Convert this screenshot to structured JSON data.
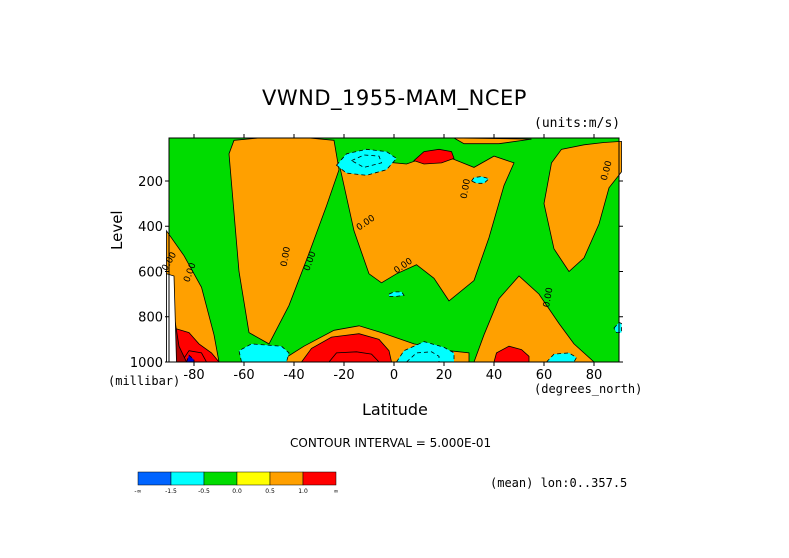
{
  "chart_data": {
    "type": "heatmap",
    "title": "VWND_1955-MAM_NCEP",
    "units_label": "(units:m/s)",
    "xlabel": "Latitude",
    "x_units_label": "(degrees_north)",
    "ylabel": "Level",
    "y_units_label": "(millibar)",
    "xlim": [
      -90,
      90
    ],
    "ylim": [
      1000,
      10
    ],
    "x_ticks": [
      "-80",
      "-60",
      "-40",
      "-20",
      "0",
      "20",
      "40",
      "60",
      "80"
    ],
    "y_ticks": [
      "200",
      "400",
      "600",
      "800",
      "1000"
    ],
    "contour_interval_text": "CONTOUR INTERVAL = 5.000E-01",
    "mean_text": "(mean) lon:0..357.5",
    "colorbar": {
      "colors": [
        "#0064ff",
        "#00ffff",
        "#00dc00",
        "#ffff00",
        "#ffa000",
        "#ff0000"
      ],
      "labels": [
        "-∞",
        "-1.5",
        "-0.5",
        "0.0",
        "0.5",
        "1.0",
        "∞"
      ]
    },
    "contour_labels": [
      "0.00",
      "0.00",
      "0.00",
      "0.00",
      "0.00",
      "0.00",
      "0.00",
      "0.00",
      "0.00"
    ],
    "regions": [
      {
        "level": 0.5,
        "points": [
          [
            -66,
            80
          ],
          [
            -62,
            600
          ],
          [
            -58,
            870
          ],
          [
            -50,
            920
          ],
          [
            -42,
            750
          ],
          [
            -34,
            520
          ],
          [
            -27,
            310
          ],
          [
            -22,
            150
          ],
          [
            -24,
            20
          ],
          [
            -34,
            10
          ],
          [
            -54,
            10
          ],
          [
            -64,
            20
          ]
        ]
      },
      {
        "level": 0.5,
        "points": [
          [
            -22,
            120
          ],
          [
            -16,
            420
          ],
          [
            -10,
            610
          ],
          [
            -5,
            650
          ],
          [
            1,
            610
          ],
          [
            9,
            570
          ],
          [
            16,
            630
          ],
          [
            22,
            730
          ],
          [
            32,
            640
          ],
          [
            38,
            450
          ],
          [
            44,
            220
          ],
          [
            48,
            120
          ],
          [
            40,
            90
          ],
          [
            32,
            140
          ],
          [
            23,
            100
          ],
          [
            14,
            90
          ],
          [
            5,
            125
          ],
          [
            -4,
            115
          ],
          [
            -14,
            100
          ]
        ]
      },
      {
        "level": 0.5,
        "points": [
          [
            -91,
            420
          ],
          [
            -84,
            530
          ],
          [
            -77,
            670
          ],
          [
            -72,
            880
          ],
          [
            -70,
            1000
          ],
          [
            -91,
            1000
          ]
        ]
      },
      {
        "level": 0.5,
        "points": [
          [
            -46,
            1000
          ],
          [
            -36,
            930
          ],
          [
            -24,
            860
          ],
          [
            -14,
            840
          ],
          [
            -5,
            870
          ],
          [
            8,
            920
          ],
          [
            22,
            950
          ],
          [
            30,
            960
          ],
          [
            30,
            1000
          ]
        ]
      },
      {
        "level": 0.5,
        "points": [
          [
            32,
            1000
          ],
          [
            36,
            880
          ],
          [
            42,
            720
          ],
          [
            50,
            620
          ],
          [
            58,
            700
          ],
          [
            66,
            830
          ],
          [
            72,
            920
          ],
          [
            80,
            1000
          ]
        ]
      },
      {
        "level": 0.5,
        "points": [
          [
            60,
            300
          ],
          [
            63,
            120
          ],
          [
            67,
            60
          ],
          [
            76,
            40
          ],
          [
            84,
            30
          ],
          [
            91,
            25
          ],
          [
            91,
            160
          ],
          [
            86,
            230
          ],
          [
            82,
            390
          ],
          [
            76,
            540
          ],
          [
            70,
            600
          ],
          [
            64,
            500
          ]
        ]
      },
      {
        "level": 0.5,
        "points": [
          [
            24,
            10
          ],
          [
            28,
            35
          ],
          [
            42,
            35
          ],
          [
            55,
            15
          ]
        ]
      },
      {
        "level": -1.0,
        "points": [
          [
            -23,
            130
          ],
          [
            -19,
            80
          ],
          [
            -11,
            60
          ],
          [
            -3,
            70
          ],
          [
            1,
            100
          ],
          [
            -3,
            150
          ],
          [
            -11,
            175
          ],
          [
            -19,
            165
          ]
        ]
      },
      {
        "level": -1.5,
        "points": [
          [
            -17,
            110
          ],
          [
            -12,
            85
          ],
          [
            -6,
            90
          ],
          [
            -5,
            120
          ],
          [
            -12,
            140
          ]
        ]
      },
      {
        "level": -1.0,
        "points": [
          [
            31,
            200
          ],
          [
            32,
            185
          ],
          [
            35,
            180
          ],
          [
            38,
            190
          ],
          [
            36,
            210
          ],
          [
            33,
            210
          ]
        ]
      },
      {
        "level": -1.0,
        "points": [
          [
            -2,
            700
          ],
          [
            0,
            690
          ],
          [
            3,
            690
          ],
          [
            4,
            705
          ],
          [
            1,
            710
          ],
          [
            -2,
            710
          ]
        ]
      },
      {
        "level": -1.0,
        "points": [
          [
            -61,
            1000
          ],
          [
            -62,
            950
          ],
          [
            -57,
            920
          ],
          [
            -45,
            930
          ],
          [
            -42,
            960
          ],
          [
            -43,
            1000
          ]
        ]
      },
      {
        "level": -1.0,
        "points": [
          [
            1,
            1000
          ],
          [
            4,
            950
          ],
          [
            12,
            910
          ],
          [
            20,
            935
          ],
          [
            24,
            960
          ],
          [
            24,
            1000
          ]
        ]
      },
      {
        "level": -1.5,
        "points": [
          [
            5,
            1000
          ],
          [
            9,
            960
          ],
          [
            15,
            955
          ],
          [
            18,
            975
          ],
          [
            18,
            1000
          ]
        ]
      },
      {
        "level": -1.0,
        "points": [
          [
            61,
            1000
          ],
          [
            64,
            965
          ],
          [
            70,
            960
          ],
          [
            73,
            980
          ],
          [
            72,
            1000
          ]
        ]
      },
      {
        "level": -1.0,
        "points": [
          [
            88,
            850
          ],
          [
            90,
            825
          ],
          [
            91,
            830
          ],
          [
            91,
            870
          ],
          [
            89,
            870
          ]
        ]
      },
      {
        "level": 1.0,
        "points": [
          [
            8,
            110
          ],
          [
            12,
            70
          ],
          [
            18,
            60
          ],
          [
            23,
            70
          ],
          [
            24,
            100
          ],
          [
            19,
            120
          ],
          [
            12,
            125
          ]
        ]
      },
      {
        "level": 1.0,
        "points": [
          [
            -88,
            850
          ],
          [
            -82,
            870
          ],
          [
            -78,
            920
          ],
          [
            -73,
            960
          ],
          [
            -70,
            1000
          ],
          [
            -88,
            1000
          ]
        ]
      },
      {
        "level": 1.0,
        "points": [
          [
            -37,
            1000
          ],
          [
            -33,
            940
          ],
          [
            -25,
            890
          ],
          [
            -14,
            875
          ],
          [
            -6,
            900
          ],
          [
            -2,
            950
          ],
          [
            -1,
            1000
          ]
        ]
      },
      {
        "level": 1.0,
        "points": [
          [
            40,
            1000
          ],
          [
            41,
            960
          ],
          [
            46,
            930
          ],
          [
            51,
            945
          ],
          [
            54,
            975
          ],
          [
            54,
            1000
          ]
        ]
      },
      {
        "level": 1.5,
        "points": [
          [
            -26,
            1000
          ],
          [
            -23,
            960
          ],
          [
            -15,
            955
          ],
          [
            -9,
            965
          ],
          [
            -6,
            1000
          ]
        ]
      },
      {
        "level": 1.5,
        "points": [
          [
            -85,
            1000
          ],
          [
            -82,
            950
          ],
          [
            -77,
            960
          ],
          [
            -75,
            1000
          ]
        ]
      },
      {
        "level": 2.0,
        "points": [
          [
            -91,
            770
          ],
          [
            -88,
            790
          ],
          [
            -86,
            930
          ],
          [
            -83,
            1000
          ],
          [
            -91,
            1000
          ]
        ]
      },
      {
        "level": 3.0,
        "points": [
          [
            -91,
            610
          ],
          [
            -88,
            620
          ],
          [
            -87,
            1000
          ],
          [
            -91,
            1000
          ]
        ]
      },
      {
        "level": -2.0,
        "points": [
          [
            -83,
            1000
          ],
          [
            -82,
            970
          ],
          [
            -80,
            990
          ],
          [
            -80,
            1000
          ]
        ]
      }
    ]
  }
}
